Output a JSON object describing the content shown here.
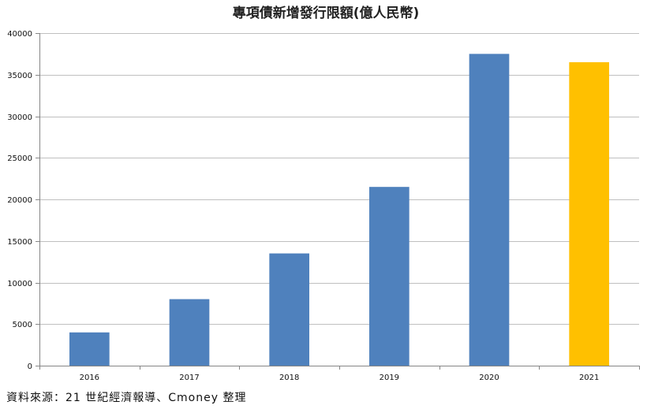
{
  "chart_data": {
    "type": "bar",
    "title": "專項債新增發行限額(億人民幣)",
    "categories": [
      "2016",
      "2017",
      "2018",
      "2019",
      "2020",
      "2021"
    ],
    "values": [
      4000,
      8000,
      13500,
      21500,
      37500,
      36500
    ],
    "bar_colors": [
      "#4F81BD",
      "#4F81BD",
      "#4F81BD",
      "#4F81BD",
      "#4F81BD",
      "#FFC000"
    ],
    "ylim": [
      0,
      40000
    ],
    "yticks": [
      0,
      5000,
      10000,
      15000,
      20000,
      25000,
      30000,
      35000,
      40000
    ],
    "grid": true,
    "legend": "none"
  },
  "source_note": "資料來源：21 世紀經濟報導、Cmoney 整理"
}
